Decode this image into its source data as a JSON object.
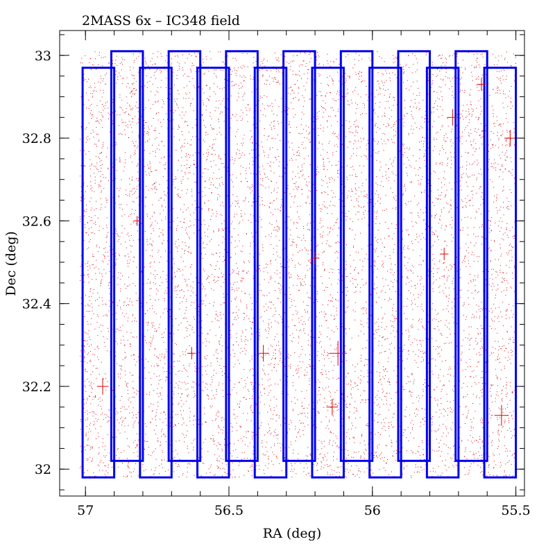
{
  "chart_data": {
    "type": "scatter",
    "title": "2MASS 6x – IC348 field",
    "xlabel": "RA (deg)",
    "ylabel": "Dec (deg)",
    "xlim": [
      57.09,
      55.47
    ],
    "ylim": [
      31.935,
      33.06
    ],
    "x_reversed": true,
    "xticks": [
      57,
      56.5,
      56,
      55.5
    ],
    "xtick_labels": [
      "57",
      "56.5",
      "56",
      "55.5"
    ],
    "yticks": [
      32,
      32.2,
      32.4,
      32.6,
      32.8,
      33
    ],
    "ytick_labels": [
      "32",
      "32.2",
      "32.4",
      "32.6",
      "32.8",
      "33"
    ],
    "grid": false,
    "legend": "none",
    "colors": {
      "points": "#dd0000",
      "footprints": "#0000ee",
      "frame": "#000000"
    },
    "point_cloud": {
      "description_count_estimate": 30000,
      "ra_range": [
        57.02,
        55.5
      ],
      "dec_range": [
        31.98,
        33.01
      ]
    },
    "bright_sources": [
      {
        "ra": 56.94,
        "dec": 32.2,
        "size": 0.02
      },
      {
        "ra": 56.63,
        "dec": 32.28,
        "size": 0.015
      },
      {
        "ra": 56.38,
        "dec": 32.28,
        "size": 0.02
      },
      {
        "ra": 56.12,
        "dec": 32.28,
        "size": 0.03
      },
      {
        "ra": 56.2,
        "dec": 32.51,
        "size": 0.015
      },
      {
        "ra": 56.14,
        "dec": 32.15,
        "size": 0.02
      },
      {
        "ra": 55.72,
        "dec": 32.85,
        "size": 0.02
      },
      {
        "ra": 55.75,
        "dec": 32.52,
        "size": 0.015
      },
      {
        "ra": 55.52,
        "dec": 32.8,
        "size": 0.02
      },
      {
        "ra": 55.55,
        "dec": 32.13,
        "size": 0.025
      },
      {
        "ra": 55.62,
        "dec": 32.93,
        "size": 0.015
      },
      {
        "ra": 56.82,
        "dec": 32.6,
        "size": 0.012
      }
    ],
    "footprints": [
      {
        "ra_left": 57.01,
        "ra_right": 56.9,
        "dec_bottom": 31.98,
        "dec_top": 32.97
      },
      {
        "ra_left": 56.91,
        "ra_right": 56.8,
        "dec_bottom": 32.02,
        "dec_top": 33.01
      },
      {
        "ra_left": 56.81,
        "ra_right": 56.7,
        "dec_bottom": 31.98,
        "dec_top": 32.97
      },
      {
        "ra_left": 56.71,
        "ra_right": 56.6,
        "dec_bottom": 32.02,
        "dec_top": 33.01
      },
      {
        "ra_left": 56.61,
        "ra_right": 56.5,
        "dec_bottom": 31.98,
        "dec_top": 32.97
      },
      {
        "ra_left": 56.51,
        "ra_right": 56.4,
        "dec_bottom": 32.02,
        "dec_top": 33.01
      },
      {
        "ra_left": 56.41,
        "ra_right": 56.3,
        "dec_bottom": 31.98,
        "dec_top": 32.97
      },
      {
        "ra_left": 56.31,
        "ra_right": 56.2,
        "dec_bottom": 32.02,
        "dec_top": 33.01
      },
      {
        "ra_left": 56.21,
        "ra_right": 56.1,
        "dec_bottom": 31.98,
        "dec_top": 32.97
      },
      {
        "ra_left": 56.11,
        "ra_right": 56.0,
        "dec_bottom": 32.02,
        "dec_top": 33.01
      },
      {
        "ra_left": 56.01,
        "ra_right": 55.9,
        "dec_bottom": 31.98,
        "dec_top": 32.97
      },
      {
        "ra_left": 55.91,
        "ra_right": 55.8,
        "dec_bottom": 32.02,
        "dec_top": 33.01
      },
      {
        "ra_left": 55.81,
        "ra_right": 55.7,
        "dec_bottom": 31.98,
        "dec_top": 32.97
      },
      {
        "ra_left": 55.71,
        "ra_right": 55.6,
        "dec_bottom": 32.02,
        "dec_top": 33.01
      },
      {
        "ra_left": 55.61,
        "ra_right": 55.5,
        "dec_bottom": 31.98,
        "dec_top": 32.97
      }
    ]
  }
}
